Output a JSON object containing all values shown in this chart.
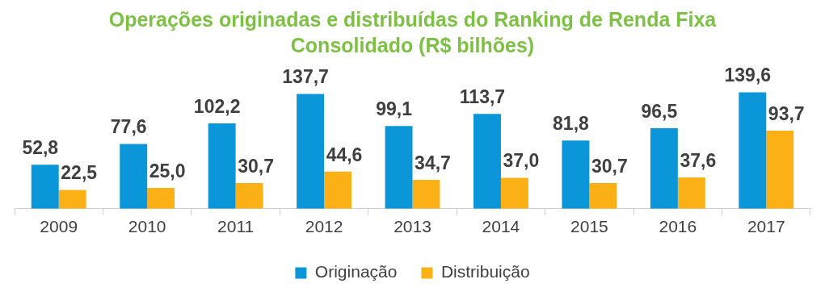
{
  "chart_data": {
    "type": "bar",
    "title": "Operações originadas e distribuídas do Ranking de Renda Fixa Consolidado (R$ bilhões)",
    "categories": [
      "2009",
      "2010",
      "2011",
      "2012",
      "2013",
      "2014",
      "2015",
      "2016",
      "2017"
    ],
    "series": [
      {
        "name": "Originação",
        "color": "#0a96d8",
        "values": [
          52.8,
          77.6,
          102.2,
          137.7,
          99.1,
          113.7,
          81.8,
          96.5,
          139.6
        ],
        "value_labels": [
          "52,8",
          "77,6",
          "102,2",
          "137,7",
          "99,1",
          "113,7",
          "81,8",
          "96,5",
          "139,6"
        ]
      },
      {
        "name": "Distribuição",
        "color": "#fbb116",
        "values": [
          22.5,
          25.0,
          30.7,
          44.6,
          34.7,
          37.0,
          30.7,
          37.6,
          93.7
        ],
        "value_labels": [
          "22,5",
          "25,0",
          "30,7",
          "44,6",
          "34,7",
          "37,0",
          "30,7",
          "37,6",
          "93,7"
        ]
      }
    ],
    "grid": false,
    "legend": "bottom"
  }
}
